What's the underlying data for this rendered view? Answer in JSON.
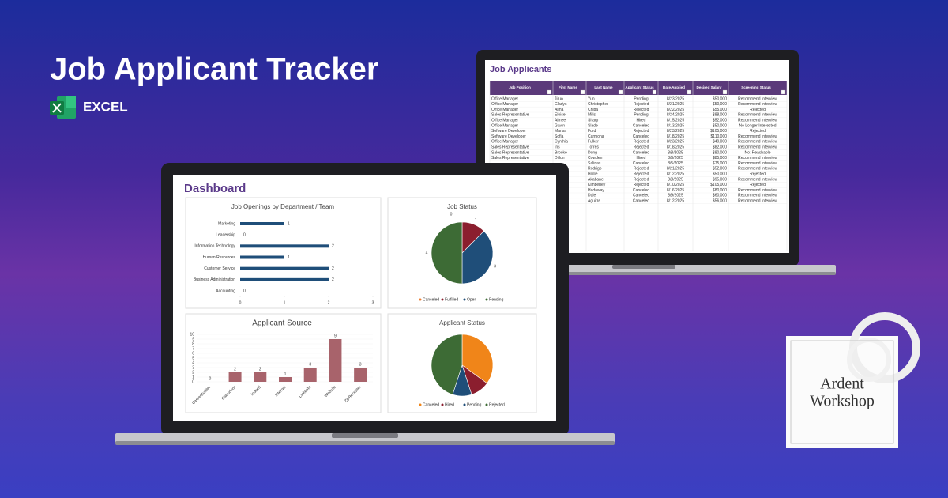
{
  "header": {
    "title": "Job Applicant Tracker",
    "app": "EXCEL"
  },
  "spreadsheet": {
    "title": "Job Applicants",
    "columns": [
      "Job Position",
      "First Name",
      "Last Name",
      "Applicant Status",
      "Date Applied",
      "Desired Salary",
      "Screening Status"
    ],
    "rows": [
      [
        "Office Manager",
        "Jiruo",
        "Yun",
        "Pending",
        "8/23/2025",
        "$50,000",
        "Recommend Interview"
      ],
      [
        "Office Manager",
        "Gladys",
        "Christopher",
        "Rejected",
        "8/21/2025",
        "$50,000",
        "Recommend Interview"
      ],
      [
        "Office Manager",
        "Alma",
        "Chiba",
        "Rejected",
        "8/22/2025",
        "$55,000",
        "Rejected"
      ],
      [
        "Sales Representative",
        "Eloise",
        "Mills",
        "Pending",
        "8/24/2025",
        "$88,000",
        "Recommend Interview"
      ],
      [
        "Office Manager",
        "Aimee",
        "Sharp",
        "Hired",
        "8/15/2025",
        "$52,000",
        "Recommend Interview"
      ],
      [
        "Office Manager",
        "Gavin",
        "Slade",
        "Canceled",
        "8/13/2025",
        "$50,000",
        "No Longer Interested"
      ],
      [
        "Software Developer",
        "Marisa",
        "Ford",
        "Rejected",
        "8/23/2025",
        "$105,000",
        "Rejected"
      ],
      [
        "Software Developer",
        "Sofia",
        "Carmona",
        "Canceled",
        "8/18/2025",
        "$110,000",
        "Recommend Interview"
      ],
      [
        "Office Manager",
        "Cynthia",
        "Fulker",
        "Rejected",
        "8/23/2025",
        "$49,000",
        "Recommend Interview"
      ],
      [
        "Sales Representative",
        "Iris",
        "Torres",
        "Rejected",
        "8/18/2025",
        "$82,000",
        "Recommend Interview"
      ],
      [
        "Sales Representative",
        "Brooke",
        "Dong",
        "Canceled",
        "8/8/2025",
        "$80,000",
        "Not Reachable"
      ],
      [
        "Sales Representative",
        "Dillon",
        "Cowden",
        "Hired",
        "8/6/2025",
        "$85,000",
        "Recommend Interview"
      ],
      [
        null,
        null,
        "Salinas",
        "Canceled",
        "8/5/2025",
        "$75,000",
        "Recommend Interview"
      ],
      [
        null,
        null,
        "Rodrigo",
        "Rejected",
        "8/21/2025",
        "$52,000",
        "Recommend Interview"
      ],
      [
        null,
        null,
        "Hollie",
        "Rejected",
        "8/12/2025",
        "$50,000",
        "Rejected"
      ],
      [
        null,
        null,
        "Akabane",
        "Rejected",
        "8/8/2025",
        "$95,000",
        "Recommend Interview"
      ],
      [
        null,
        null,
        "Kimberley",
        "Rejected",
        "8/10/2025",
        "$105,000",
        "Rejected"
      ],
      [
        null,
        null,
        "Hadaway",
        "Canceled",
        "8/16/2025",
        "$80,000",
        "Recommend Interview"
      ],
      [
        null,
        null,
        "Dale",
        "Canceled",
        "8/9/2025",
        "$60,000",
        "Recommend Interview"
      ],
      [
        null,
        null,
        "Aguirre",
        "Canceled",
        "8/12/2025",
        "$56,000",
        "Recommend Interview"
      ]
    ]
  },
  "dashboard": {
    "title": "Dashboard"
  },
  "chart_data": [
    {
      "type": "bar",
      "orientation": "horizontal",
      "title": "Job Openings by Department / Team",
      "categories": [
        "Marketing",
        "Leadership",
        "Information Technology",
        "Human Resources",
        "Customer Service",
        "Business Administration",
        "Accounting"
      ],
      "values": [
        1,
        0,
        2,
        1,
        2,
        2,
        0
      ],
      "color": "#1f4e79",
      "xlim": [
        0,
        3
      ],
      "xticks": [
        0,
        1,
        2,
        3
      ],
      "data_labels": true
    },
    {
      "type": "pie",
      "title": "Job Status",
      "categories": [
        "Canceled",
        "Fulfilled",
        "Open",
        "Pending"
      ],
      "values": [
        0,
        1,
        3,
        4
      ],
      "colors": [
        "#ed7d31",
        "#8b1e2e",
        "#1f4e79",
        "#3d6b35"
      ],
      "data_labels": true
    },
    {
      "type": "bar",
      "orientation": "vertical",
      "title": "Applicant Source",
      "categories": [
        "CareerBuilder",
        "Glassdoor",
        "Indeed",
        "Internal",
        "LinkedIn",
        "Website",
        "ZipRecruiter"
      ],
      "values": [
        0,
        2,
        2,
        1,
        3,
        9,
        3
      ],
      "color": "#a8636b",
      "ylim": [
        0,
        10
      ],
      "yticks": [
        0,
        1,
        2,
        3,
        4,
        5,
        6,
        7,
        8,
        9,
        10
      ],
      "grid": true,
      "data_labels": true
    },
    {
      "type": "pie",
      "title": "Applicant Status",
      "categories": [
        "Canceled",
        "Hired",
        "Pending",
        "Rejected"
      ],
      "values": [
        7,
        2,
        2,
        9
      ],
      "colors": [
        "#f08519",
        "#8b1e2e",
        "#1f4e79",
        "#3d6b35"
      ],
      "data_labels": false
    }
  ],
  "logo": {
    "lines": [
      "Ardent",
      "Workshop"
    ]
  }
}
